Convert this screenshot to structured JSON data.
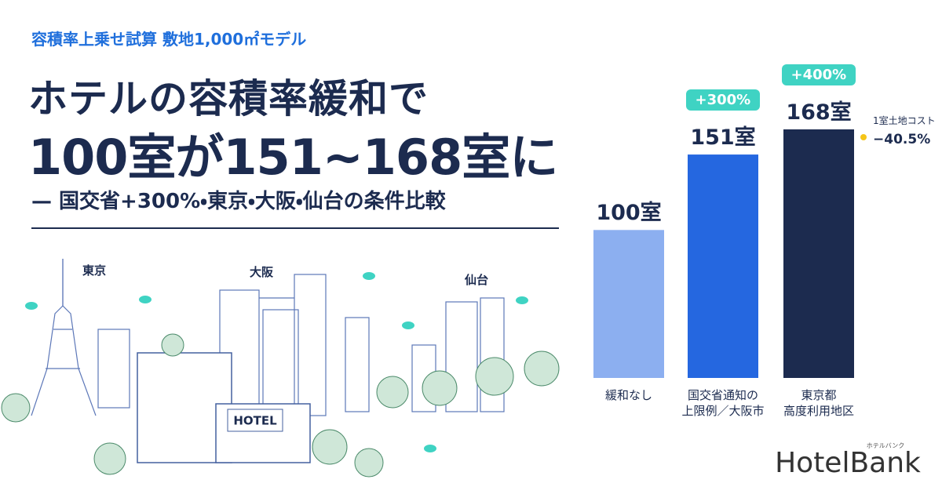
{
  "header": {
    "kicker": "容積率上乗せ試算 敷地1,000㎡モデル",
    "title_line1": "ホテルの容積率緩和で",
    "title_line2": "100室が151~168室に",
    "subtitle": "— 国交省+300%・東京・大阪・仙台の条件比較"
  },
  "illustration": {
    "cities": [
      "東京",
      "大阪",
      "仙台"
    ],
    "hotel_sign": "HOTEL"
  },
  "chart_data": {
    "type": "bar",
    "categories": [
      "緩和なし",
      "国交省通知の\n上限例／大阪市",
      "東京都\n高度利用地区"
    ],
    "values": [
      100,
      151,
      168
    ],
    "value_labels": [
      "100室",
      "151室",
      "168室"
    ],
    "colors": [
      "#8caff0",
      "#2567e0",
      "#1c2b4f"
    ],
    "change_labels": [
      null,
      "+300%",
      "+400%"
    ],
    "cost_note": {
      "label": "1室土地コスト",
      "value": "−40.5%"
    }
  },
  "logo": {
    "name": "HotelBank",
    "kana": "ホテルバンク"
  }
}
